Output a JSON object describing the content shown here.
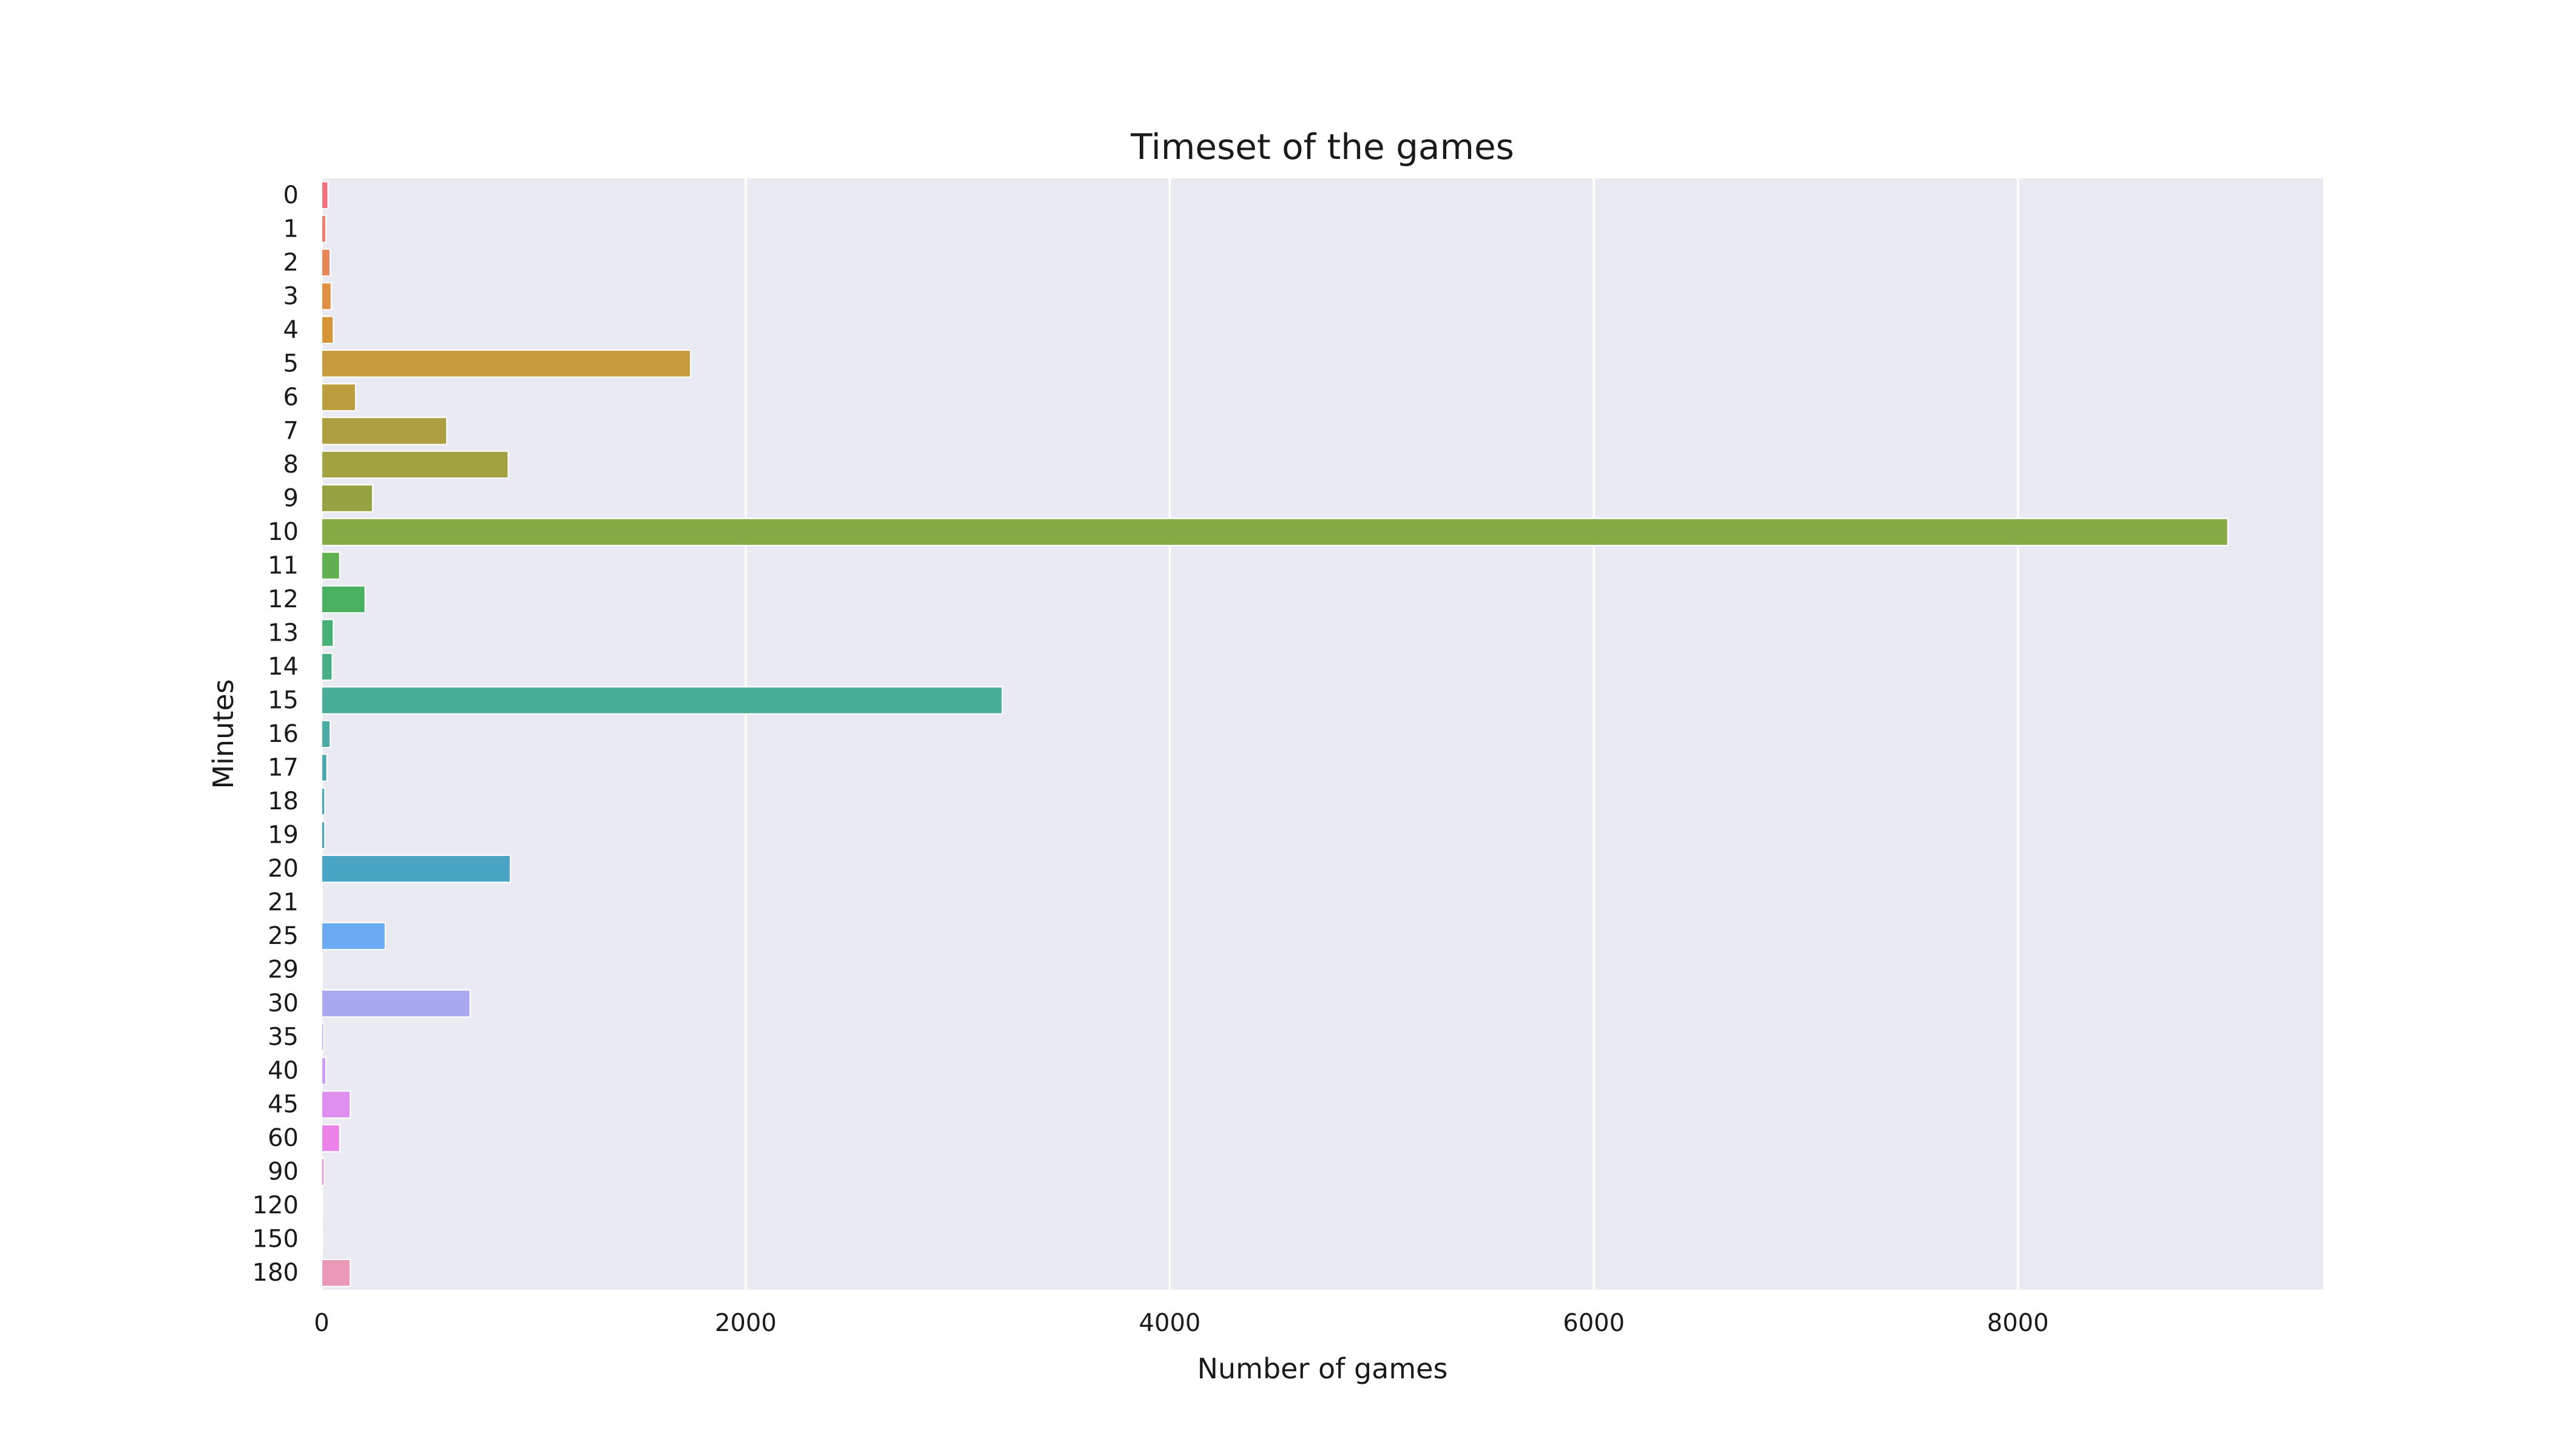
{
  "chart_data": {
    "type": "bar",
    "orientation": "horizontal",
    "title": "Timeset of the games",
    "xlabel": "Number of games",
    "ylabel": "Minutes",
    "xlim": [
      0,
      9440
    ],
    "xticks": [
      0,
      2000,
      4000,
      6000,
      8000
    ],
    "xtick_labels": [
      "0",
      "2000",
      "4000",
      "6000",
      "8000"
    ],
    "grid": true,
    "legend": "none",
    "categories": [
      "0",
      "1",
      "2",
      "3",
      "4",
      "5",
      "6",
      "7",
      "8",
      "9",
      "10",
      "11",
      "12",
      "13",
      "14",
      "15",
      "16",
      "17",
      "18",
      "19",
      "20",
      "21",
      "25",
      "29",
      "30",
      "35",
      "40",
      "45",
      "60",
      "90",
      "120",
      "150",
      "180"
    ],
    "values": [
      30,
      20,
      40,
      45,
      55,
      1740,
      160,
      590,
      880,
      240,
      8990,
      85,
      205,
      55,
      50,
      3210,
      40,
      25,
      15,
      15,
      890,
      3,
      300,
      3,
      700,
      10,
      20,
      135,
      85,
      12,
      4,
      4,
      135
    ],
    "colors": [
      "#f2727c",
      "#ee7d6a",
      "#e9875a",
      "#e08f44",
      "#d7953a",
      "#c99b3f",
      "#bc9e3e",
      "#ad9f41",
      "#a2a243",
      "#97a342",
      "#84aa46",
      "#5fb04f",
      "#4bb162",
      "#47b074",
      "#48af84",
      "#4aad97",
      "#49aca4",
      "#49a9ae",
      "#4aa7b5",
      "#4aa5bb",
      "#4aa4c4",
      "#57a2d4",
      "#6aaaf3",
      "#8aa9f4",
      "#a7a8f0",
      "#bba5f2",
      "#cb9df3",
      "#df90ee",
      "#eb83e9",
      "#f085d7",
      "#f08bc6",
      "#ee91b5",
      "#ea98b6"
    ],
    "plot_bg": "#eaeaf2",
    "grid_color": "#ffffff",
    "text_color": "#1a1a1a"
  }
}
